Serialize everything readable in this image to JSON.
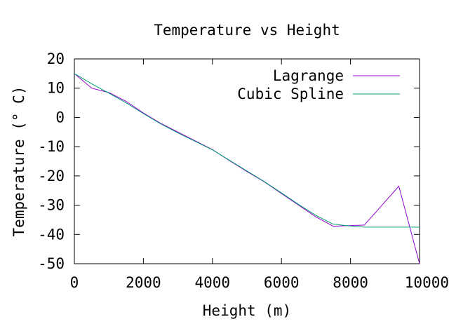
{
  "chart_data": {
    "type": "line",
    "title": "Temperature vs Height",
    "xlabel": "Height (m)",
    "ylabel": "Temperature (° C)",
    "xlim": [
      0,
      10000
    ],
    "ylim": [
      -50,
      20
    ],
    "x_ticks": [
      0,
      2000,
      4000,
      6000,
      8000,
      10000
    ],
    "y_ticks": [
      20,
      10,
      0,
      -10,
      -20,
      -30,
      -40,
      -50
    ],
    "grid": false,
    "legend_position": "top-right",
    "series": [
      {
        "name": "Lagrange",
        "color": "#9400d3",
        "x": [
          0,
          500,
          1000,
          1500,
          2000,
          2500,
          3000,
          3500,
          4000,
          4500,
          5000,
          5500,
          6000,
          6500,
          7000,
          7500,
          7900,
          8400,
          9400,
          10000
        ],
        "y": [
          15,
          10,
          8.5,
          5.5,
          1.5,
          -2,
          -5,
          -8,
          -11,
          -14.8,
          -18.5,
          -22,
          -26,
          -30,
          -34,
          -37.2,
          -37,
          -36.8,
          -23.5,
          -50
        ]
      },
      {
        "name": "Cubic Spline",
        "color": "#009e73",
        "x": [
          0,
          500,
          1000,
          1500,
          2000,
          2500,
          3000,
          3500,
          4000,
          4500,
          5000,
          5500,
          6000,
          6500,
          7000,
          7500,
          7900,
          8400,
          9000,
          10000
        ],
        "y": [
          15,
          11.5,
          8.3,
          5,
          1.3,
          -2.2,
          -5.3,
          -8.2,
          -11.1,
          -14.7,
          -18.3,
          -21.9,
          -25.8,
          -29.8,
          -33.5,
          -36.5,
          -37,
          -37.5,
          -37.5,
          -37.5
        ]
      }
    ]
  }
}
